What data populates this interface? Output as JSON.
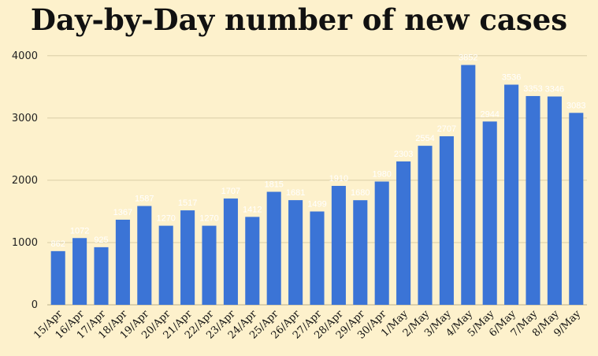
{
  "chart_data": {
    "type": "bar",
    "title": "Day-by-Day number of new cases",
    "xlabel": "",
    "ylabel": "",
    "categories": [
      "15/Apr",
      "16/Apr",
      "17/Apr",
      "18/Apr",
      "19/Apr",
      "20/Apr",
      "21/Apr",
      "22/Apr",
      "23/Apr",
      "24/Apr",
      "25/Apr",
      "26/Apr",
      "27/Apr",
      "28/Apr",
      "29/Apr",
      "30/Apr",
      "1/May",
      "2/May",
      "3/May",
      "4/May",
      "5/May",
      "6/May",
      "7/May",
      "8/May",
      "9/May"
    ],
    "values": [
      862,
      1072,
      925,
      1367,
      1587,
      1270,
      1517,
      1270,
      1707,
      1412,
      1815,
      1681,
      1499,
      1910,
      1680,
      1980,
      2303,
      2554,
      2707,
      3852,
      2944,
      3536,
      3353,
      3346,
      3083
    ],
    "data_labels": [
      "862",
      "1072",
      "925",
      "1367",
      "1587",
      "1270",
      "1517",
      "1270",
      "1707",
      "1412",
      "1815",
      "1681",
      "1499",
      "1910",
      "1680",
      "1980",
      "2303",
      "2554",
      "2707",
      "3852",
      "2944",
      "3536",
      "3353",
      "3346",
      "3083"
    ],
    "yticks": [
      0,
      1000,
      2000,
      3000,
      4000
    ],
    "ylim": [
      0,
      4200
    ],
    "grid": true,
    "legend": "none",
    "bar_color": "#3b74d6",
    "grid_color": "#d9cda6",
    "background": "#fdf1cc"
  }
}
